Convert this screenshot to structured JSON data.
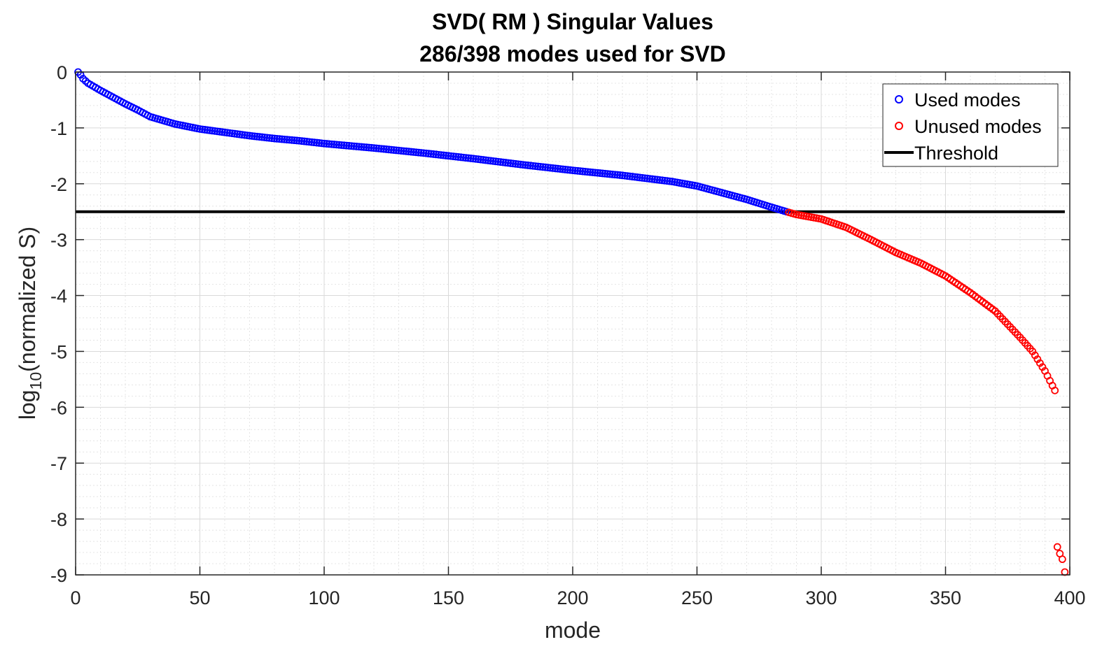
{
  "chart_data": {
    "type": "scatter",
    "title": "SVD( RM ) Singular Values",
    "subtitle": "286/398 modes used for SVD",
    "xlabel": "mode",
    "ylabel_prefix": "log",
    "ylabel_subscript": "10",
    "ylabel_suffix": "(normalized S)",
    "xlim": [
      0,
      400
    ],
    "ylim": [
      -9,
      0
    ],
    "xticks": [
      "0",
      "50",
      "100",
      "150",
      "200",
      "250",
      "300",
      "350",
      "400"
    ],
    "yticks": [
      "0",
      "-1",
      "-2",
      "-3",
      "-4",
      "-5",
      "-6",
      "-7",
      "-8",
      "-9"
    ],
    "grid": true,
    "minor_grid": true,
    "legend_position": "top-right",
    "threshold": -2.5,
    "total_modes": 398,
    "used_count": 286,
    "colors": {
      "used": "#0000ff",
      "unused": "#ff0000",
      "threshold": "#000000"
    },
    "legend": [
      {
        "label": "Used modes",
        "marker": "circle",
        "color": "#0000ff"
      },
      {
        "label": "Unused modes",
        "marker": "circle",
        "color": "#ff0000"
      },
      {
        "label": "Threshold",
        "marker": "line",
        "color": "#000000"
      }
    ],
    "anchors": [
      [
        1,
        0.0
      ],
      [
        2,
        -0.05
      ],
      [
        3,
        -0.12
      ],
      [
        5,
        -0.2
      ],
      [
        10,
        -0.33
      ],
      [
        15,
        -0.45
      ],
      [
        20,
        -0.57
      ],
      [
        25,
        -0.68
      ],
      [
        30,
        -0.8
      ],
      [
        40,
        -0.93
      ],
      [
        50,
        -1.02
      ],
      [
        60,
        -1.08
      ],
      [
        70,
        -1.14
      ],
      [
        80,
        -1.19
      ],
      [
        90,
        -1.23
      ],
      [
        100,
        -1.28
      ],
      [
        120,
        -1.36
      ],
      [
        140,
        -1.45
      ],
      [
        160,
        -1.55
      ],
      [
        180,
        -1.66
      ],
      [
        200,
        -1.76
      ],
      [
        220,
        -1.85
      ],
      [
        240,
        -1.96
      ],
      [
        250,
        -2.04
      ],
      [
        260,
        -2.16
      ],
      [
        270,
        -2.28
      ],
      [
        280,
        -2.42
      ],
      [
        286,
        -2.5
      ],
      [
        290,
        -2.55
      ],
      [
        300,
        -2.63
      ],
      [
        310,
        -2.78
      ],
      [
        320,
        -3.0
      ],
      [
        330,
        -3.23
      ],
      [
        340,
        -3.42
      ],
      [
        350,
        -3.65
      ],
      [
        360,
        -3.95
      ],
      [
        370,
        -4.28
      ],
      [
        380,
        -4.75
      ],
      [
        385,
        -5.0
      ],
      [
        390,
        -5.35
      ],
      [
        394,
        -5.7
      ],
      [
        395,
        -8.5
      ],
      [
        396,
        -8.62
      ],
      [
        397,
        -8.72
      ],
      [
        398,
        -8.95
      ]
    ]
  }
}
